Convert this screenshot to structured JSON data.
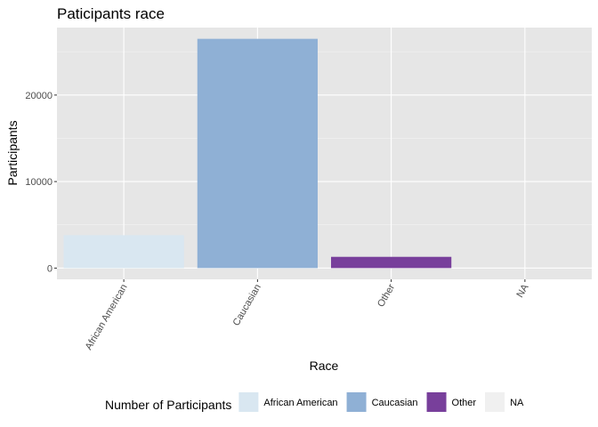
{
  "chart_data": {
    "type": "bar",
    "title": "Paticipants race",
    "xlabel": "Race",
    "ylabel": "Participants",
    "categories": [
      "African American",
      "Caucasian",
      "Other",
      "NA"
    ],
    "values": [
      3800,
      26500,
      1300,
      0
    ],
    "colors": [
      "#d9e7f1",
      "#8fb0d5",
      "#783f9b",
      "#f0f0f0"
    ],
    "ylim": [
      -1300,
      27800
    ],
    "yticks": [
      0,
      10000,
      20000
    ],
    "ytick_labels": [
      "0",
      "10000",
      "20000"
    ],
    "x_tick_rotation": -60,
    "grid": true,
    "panel_background": "#e6e6e6",
    "legend": {
      "title": "Number of Participants",
      "position": "bottom",
      "entries": [
        "African American",
        "Caucasian",
        "Other",
        "NA"
      ]
    }
  }
}
